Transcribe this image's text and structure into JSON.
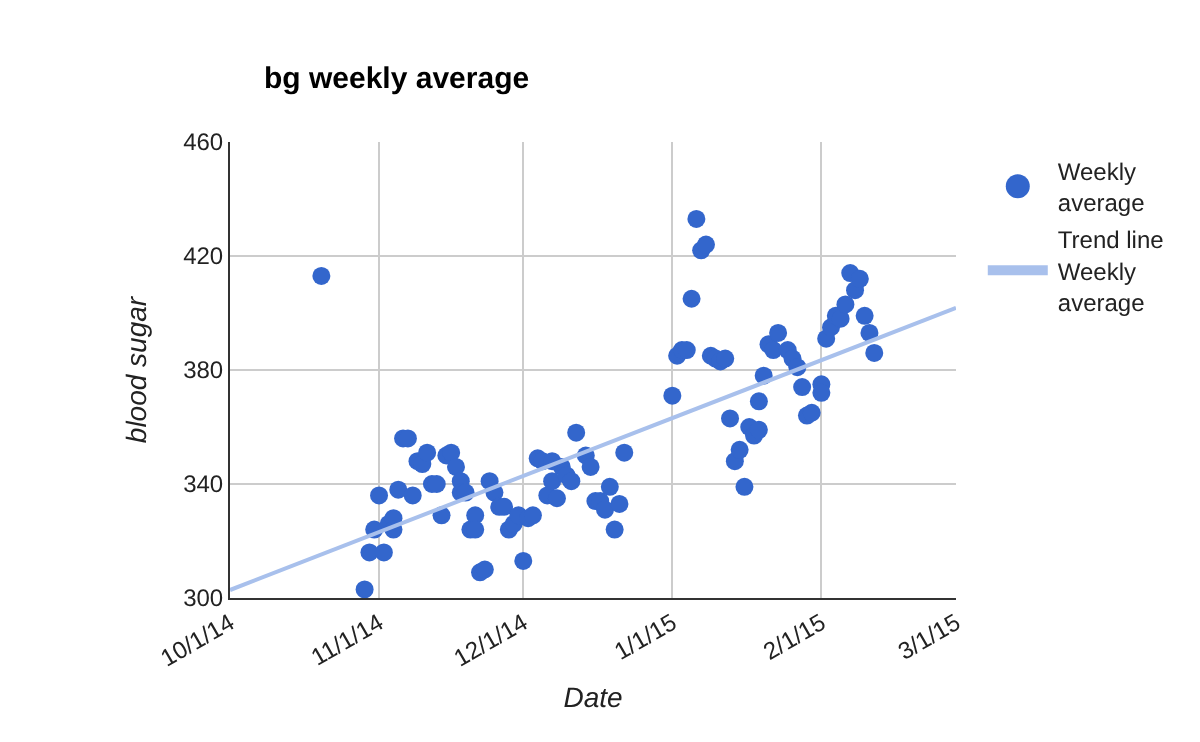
{
  "chart_data": {
    "type": "scatter",
    "title": "bg weekly average",
    "xlabel": "Date",
    "ylabel": "blood sugar",
    "xlim": [
      "2014-10-01",
      "2015-03-01"
    ],
    "xticks": [
      {
        "value": "2014-10-01",
        "label": "10/1/14"
      },
      {
        "value": "2014-11-01",
        "label": "11/1/14"
      },
      {
        "value": "2014-12-01",
        "label": "12/1/14"
      },
      {
        "value": "2015-01-01",
        "label": "1/1/15"
      },
      {
        "value": "2015-02-01",
        "label": "2/1/15"
      },
      {
        "value": "2015-03-01",
        "label": "3/1/15"
      }
    ],
    "ylim": [
      300,
      460
    ],
    "yticks": [
      300,
      340,
      380,
      420,
      460
    ],
    "grid": true,
    "legend": "right",
    "marker": "circle",
    "series": [
      {
        "name": "Weekly average",
        "color": "#3366cc",
        "x": [
          "2014-10-20",
          "2014-10-29",
          "2014-10-30",
          "2014-10-31",
          "2014-11-01",
          "2014-11-02",
          "2014-11-03",
          "2014-11-04",
          "2014-11-04",
          "2014-11-05",
          "2014-11-06",
          "2014-11-07",
          "2014-11-08",
          "2014-11-09",
          "2014-11-10",
          "2014-11-11",
          "2014-11-12",
          "2014-11-13",
          "2014-11-14",
          "2014-11-15",
          "2014-11-16",
          "2014-11-17",
          "2014-11-18",
          "2014-11-18",
          "2014-11-19",
          "2014-11-20",
          "2014-11-21",
          "2014-11-21",
          "2014-11-22",
          "2014-11-23",
          "2014-11-24",
          "2014-11-25",
          "2014-11-26",
          "2014-11-27",
          "2014-11-28",
          "2014-11-29",
          "2014-11-30",
          "2014-12-01",
          "2014-12-02",
          "2014-12-03",
          "2014-12-04",
          "2014-12-05",
          "2014-12-06",
          "2014-12-07",
          "2014-12-07",
          "2014-12-08",
          "2014-12-09",
          "2014-12-10",
          "2014-12-11",
          "2014-12-12",
          "2014-12-14",
          "2014-12-15",
          "2014-12-16",
          "2014-12-17",
          "2014-12-18",
          "2014-12-19",
          "2014-12-20",
          "2014-12-21",
          "2014-12-22",
          "2015-01-01",
          "2015-01-02",
          "2015-01-03",
          "2015-01-04",
          "2015-01-05",
          "2015-01-06",
          "2015-01-07",
          "2015-01-08",
          "2015-01-09",
          "2015-01-10",
          "2015-01-11",
          "2015-01-12",
          "2015-01-13",
          "2015-01-14",
          "2015-01-15",
          "2015-01-16",
          "2015-01-17",
          "2015-01-18",
          "2015-01-19",
          "2015-01-19",
          "2015-01-20",
          "2015-01-21",
          "2015-01-22",
          "2015-01-23",
          "2015-01-25",
          "2015-01-26",
          "2015-01-27",
          "2015-01-28",
          "2015-01-29",
          "2015-01-30",
          "2015-02-01",
          "2015-02-01",
          "2015-02-02",
          "2015-02-03",
          "2015-02-04",
          "2015-02-05",
          "2015-02-06",
          "2015-02-07",
          "2015-02-08",
          "2015-02-09",
          "2015-02-10",
          "2015-02-11",
          "2015-02-12"
        ],
        "values": [
          413,
          303,
          316,
          324,
          336,
          316,
          326,
          328,
          324,
          338,
          356,
          356,
          336,
          348,
          347,
          351,
          340,
          340,
          329,
          350,
          351,
          346,
          341,
          337,
          337,
          324,
          329,
          324,
          309,
          310,
          341,
          337,
          332,
          332,
          324,
          326,
          329,
          313,
          328,
          329,
          349,
          348,
          336,
          348,
          341,
          335,
          346,
          343,
          341,
          358,
          350,
          346,
          334,
          334,
          331,
          339,
          324,
          333,
          351,
          371,
          385,
          387,
          387,
          405,
          433,
          422,
          424,
          385,
          384,
          383,
          384,
          363,
          348,
          352,
          339,
          360,
          357,
          359,
          369,
          378,
          389,
          387,
          393,
          387,
          384,
          381,
          374,
          364,
          365,
          375,
          372,
          391,
          395,
          399,
          398,
          403,
          414,
          408,
          412,
          399,
          393,
          386
        ]
      },
      {
        "name": "Trend line Weekly average",
        "type": "line",
        "color": "#a8c0ec",
        "marker": "none",
        "x": [
          "2014-10-01",
          "2015-03-01"
        ],
        "values": [
          302.8,
          401.8
        ]
      }
    ]
  }
}
